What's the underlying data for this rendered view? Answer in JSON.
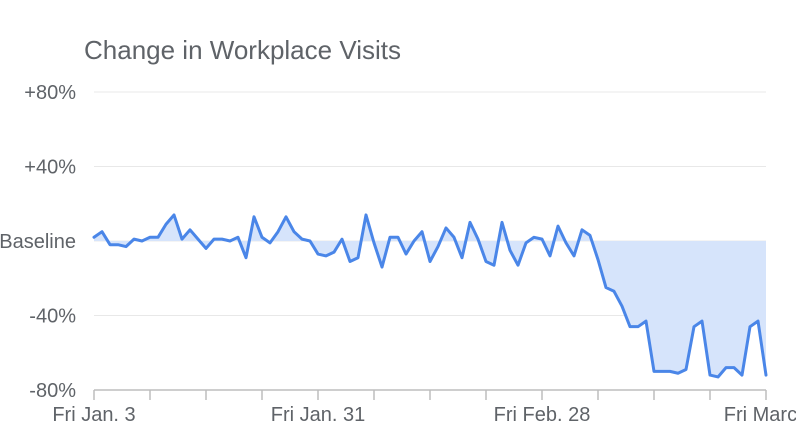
{
  "chart_data": {
    "type": "area",
    "title": "Change in Workplace Visits",
    "xlabel": "",
    "ylabel": "",
    "ylim": [
      -80,
      80
    ],
    "y_ticks": [
      {
        "value": 80,
        "label": "+80%"
      },
      {
        "value": 40,
        "label": "+40%"
      },
      {
        "value": 0,
        "label": "Baseline"
      },
      {
        "value": -40,
        "label": "-40%"
      },
      {
        "value": -80,
        "label": "-80%"
      }
    ],
    "x_tick_labels": [
      {
        "index": 0,
        "label": "Fri Jan. 3"
      },
      {
        "index": 28,
        "label": "Fri Jan. 31"
      },
      {
        "index": 56,
        "label": "Fri Feb. 28"
      },
      {
        "index": 84,
        "label": "Fri March"
      }
    ],
    "x_minor_ticks": [
      0,
      7,
      14,
      21,
      28,
      35,
      42,
      49,
      56,
      63,
      70,
      77,
      84
    ],
    "grid": true,
    "colors": {
      "line": "#4a86e8",
      "fill": "#d6e4fb",
      "grid": "#e8e8e8",
      "axis": "#bdbdbd",
      "text": "#5f6368"
    },
    "series": [
      {
        "values": [
          2,
          5,
          -2,
          -2,
          -3,
          1,
          0,
          2,
          2,
          9,
          14,
          1,
          6,
          1,
          -4,
          1,
          1,
          0,
          2,
          -9,
          13,
          2,
          -1,
          5,
          13,
          5,
          1,
          0,
          -7,
          -8,
          -6,
          1,
          -11,
          -9,
          14,
          -1,
          -14,
          2,
          2,
          -7,
          0,
          5,
          -11,
          -3,
          7,
          2,
          -9,
          10,
          1,
          -11,
          -13,
          10,
          -5,
          -13,
          -1,
          2,
          1,
          -8,
          8,
          -1,
          -8,
          6,
          3,
          -10,
          -25,
          -27,
          -35,
          -46,
          -46,
          -43,
          -70,
          -70,
          -70,
          -71,
          -69,
          -46,
          -43,
          -72,
          -73,
          -68,
          -68,
          -72,
          -46,
          -43,
          -72
        ]
      }
    ]
  }
}
